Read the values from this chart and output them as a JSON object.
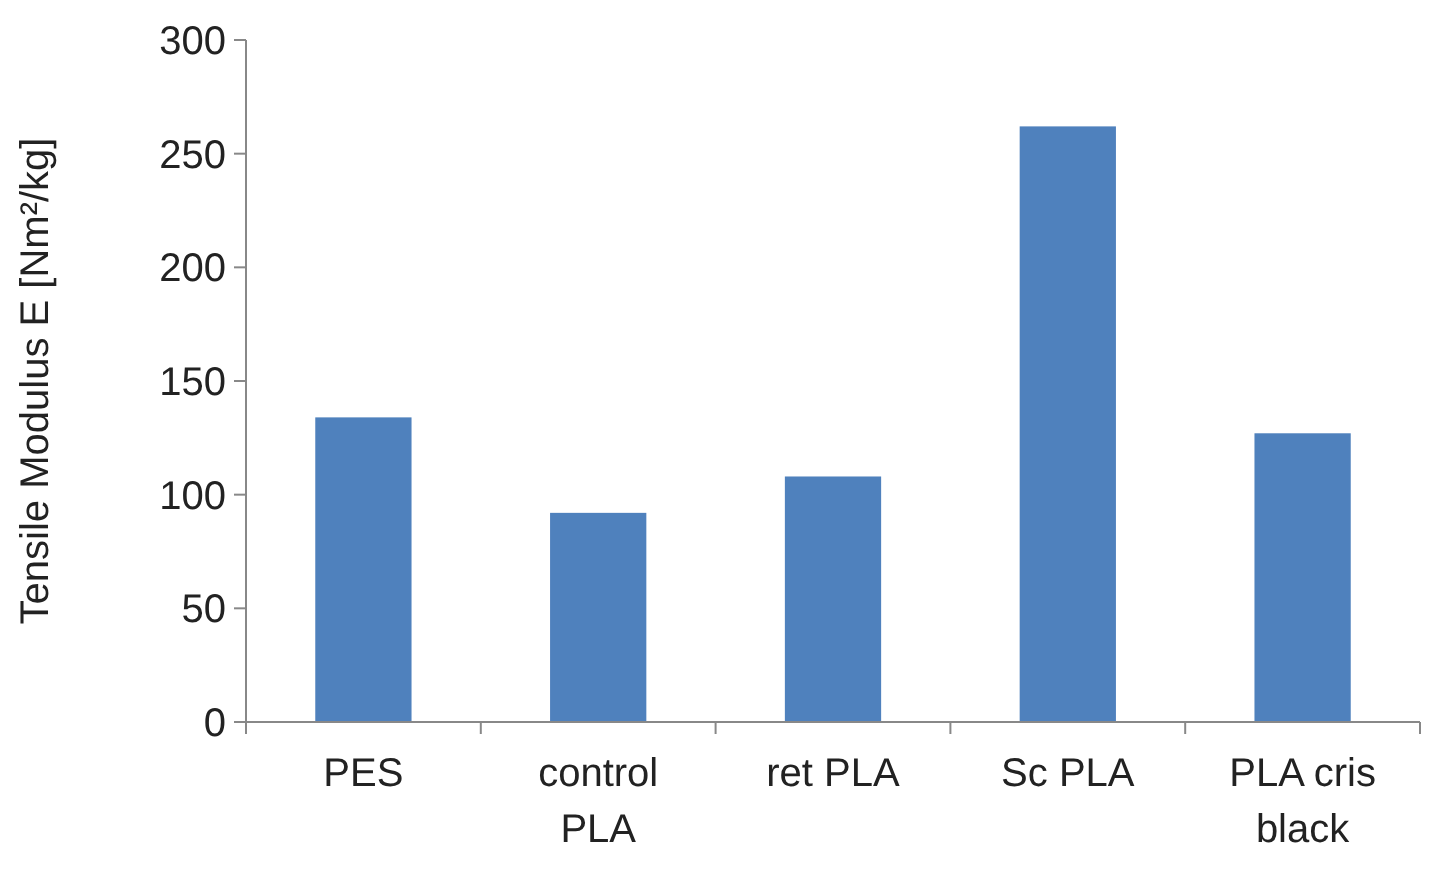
{
  "chart_data": {
    "type": "bar",
    "ylabel": "Tensile Modulus E [Nm²/kg]",
    "categories": [
      "PES",
      "control PLA",
      "ret PLA",
      "Sc PLA",
      "PLA cris black"
    ],
    "values": [
      134,
      92,
      108,
      262,
      127
    ],
    "color": "#4f81bd",
    "ylim": [
      0,
      300
    ],
    "yticks": [
      0,
      50,
      100,
      150,
      200,
      250,
      300
    ],
    "grid": false
  }
}
